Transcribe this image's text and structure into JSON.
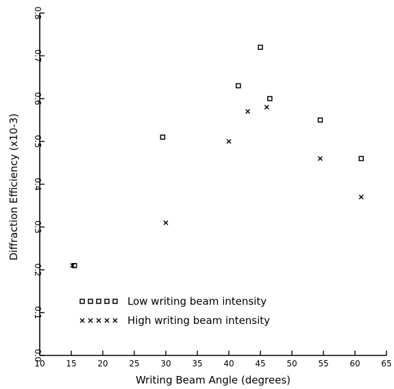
{
  "chart_data": {
    "type": "scatter",
    "title": "",
    "xlabel": "Writing Beam Angle (degrees)",
    "ylabel": "Diffraction Efficiency (x10-3)",
    "xlim": [
      10,
      65
    ],
    "ylim": [
      0.0,
      0.8
    ],
    "x_ticks": [
      "10",
      "15",
      "20",
      "25",
      "30",
      "35",
      "40",
      "45",
      "50",
      "55",
      "60",
      "65"
    ],
    "y_ticks": [
      "0.0",
      "0.1",
      "0.2",
      "0.3",
      "0.4",
      "0.5",
      "0.6",
      "0.7",
      "0.8"
    ],
    "x_tick_values": [
      10,
      15,
      20,
      25,
      30,
      35,
      40,
      45,
      50,
      55,
      60,
      65
    ],
    "y_tick_values": [
      0.0,
      0.1,
      0.2,
      0.3,
      0.4,
      0.5,
      0.6,
      0.7,
      0.8
    ],
    "grid": false,
    "legend_position": "bottom-left",
    "series": [
      {
        "name": "Low writing beam intensity",
        "marker": "square",
        "x": [
          15.5,
          29.5,
          41.5,
          45.0,
          46.5,
          54.5,
          61.0
        ],
        "y": [
          0.21,
          0.51,
          0.63,
          0.72,
          0.6,
          0.55,
          0.46
        ]
      },
      {
        "name": "High writing beam intensity",
        "marker": "x",
        "x": [
          15.2,
          30.0,
          40.0,
          43.0,
          46.0,
          54.5,
          61.0
        ],
        "y": [
          0.21,
          0.31,
          0.5,
          0.57,
          0.58,
          0.46,
          0.37
        ]
      }
    ]
  }
}
